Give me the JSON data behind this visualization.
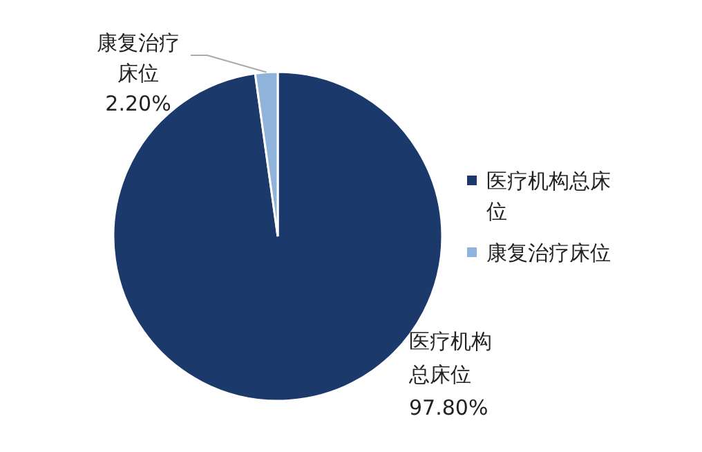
{
  "chart_data": {
    "type": "pie",
    "categories": [
      "医疗机构总床位",
      "康复治疗床位"
    ],
    "values": [
      97.8,
      2.2
    ],
    "value_labels": [
      "97.80%",
      "2.20%"
    ],
    "colors": [
      "#1b3a6b",
      "#8fb3da"
    ],
    "legend": "right"
  }
}
